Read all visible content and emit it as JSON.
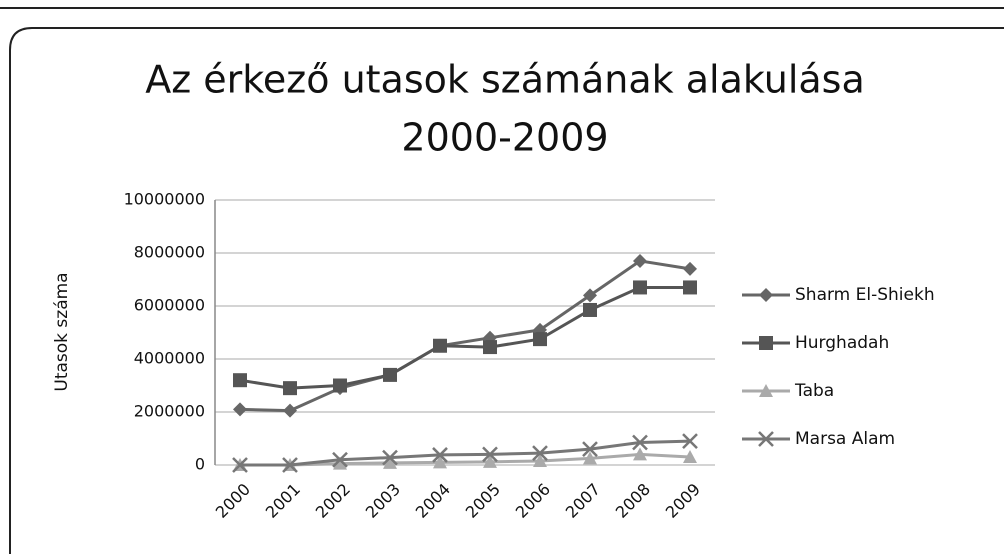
{
  "chart_data": {
    "type": "line",
    "title": [
      "Az érkező utasok számának alakulása",
      "2000-2009"
    ],
    "ylabel": "Utasok száma",
    "categories": [
      "2000",
      "2001",
      "2002",
      "2003",
      "2004",
      "2005",
      "2006",
      "2007",
      "2008",
      "2009"
    ],
    "series": [
      {
        "name": "Sharm El-Shiekh",
        "color": "#666666",
        "marker": "diamond",
        "values": [
          2100000,
          2050000,
          2900000,
          3400000,
          4500000,
          4800000,
          5100000,
          6400000,
          7700000,
          7400000
        ]
      },
      {
        "name": "Hurghadah",
        "color": "#555555",
        "marker": "square",
        "values": [
          3200000,
          2900000,
          3000000,
          3400000,
          4500000,
          4450000,
          4750000,
          5850000,
          6700000,
          6700000
        ]
      },
      {
        "name": "Taba",
        "color": "#aaaaaa",
        "marker": "triangle",
        "values": [
          0,
          0,
          50000,
          80000,
          100000,
          120000,
          150000,
          250000,
          400000,
          300000
        ]
      },
      {
        "name": "Marsa Alam",
        "color": "#777777",
        "marker": "x",
        "values": [
          0,
          0,
          200000,
          280000,
          380000,
          400000,
          450000,
          600000,
          850000,
          900000
        ]
      }
    ],
    "ylim": [
      0,
      10000000
    ],
    "yticks": [
      0,
      2000000,
      4000000,
      6000000,
      8000000,
      10000000
    ],
    "grid": true,
    "legend": "right"
  }
}
